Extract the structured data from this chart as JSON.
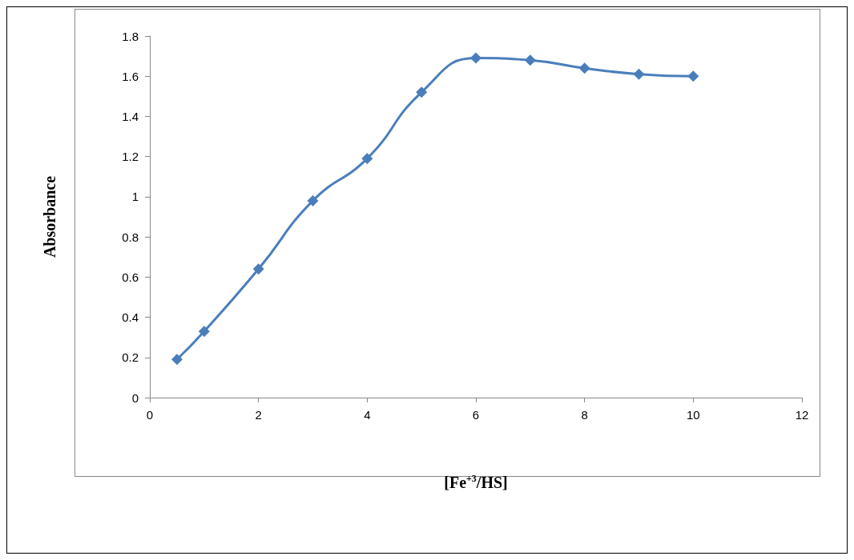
{
  "chart_data": {
    "type": "line",
    "xlabel": "[Fe$^{+3}$/HS]",
    "ylabel": "Absorbance",
    "x": [
      0.5,
      1,
      2,
      3,
      4,
      5,
      6,
      7,
      8,
      9,
      10
    ],
    "series": [
      {
        "color": "#4a7ebb",
        "values": [
          0.19,
          0.33,
          0.64,
          0.98,
          1.19,
          1.52,
          1.69,
          1.68,
          1.64,
          1.61,
          1.6
        ]
      }
    ],
    "xlim": [
      0,
      12
    ],
    "xticks": [
      0,
      2,
      4,
      6,
      8,
      10,
      12
    ],
    "ylim": [
      0,
      1.8
    ],
    "yticks": [
      0,
      0.2,
      0.4,
      0.6,
      0.8,
      1,
      1.2,
      1.4,
      1.6,
      1.8
    ],
    "grid": false,
    "marker": "diamond",
    "line_style": "solid"
  }
}
